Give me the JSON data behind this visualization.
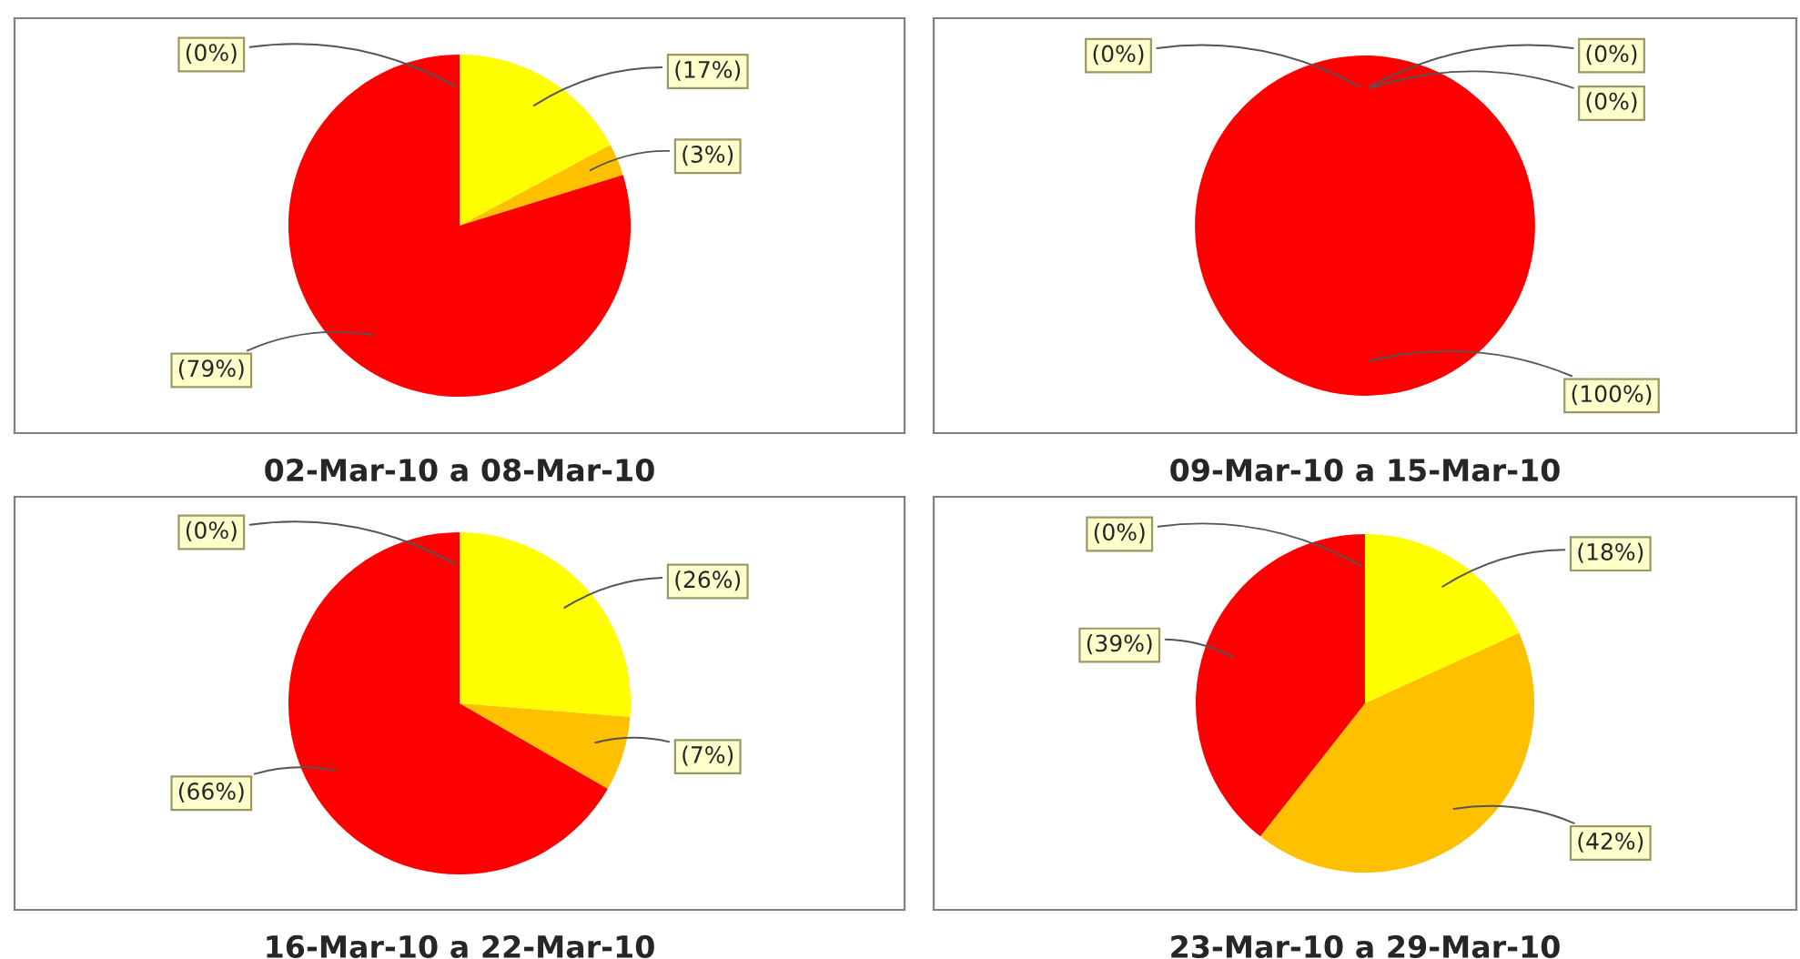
{
  "chart_data": [
    {
      "type": "pie",
      "title": "02-Mar-10 a 08-Mar-10",
      "categories": [
        null,
        null,
        null,
        null
      ],
      "values": [
        17,
        3,
        79,
        0
      ],
      "colors": [
        "#ffff00",
        "#ffc000",
        "#ff0000",
        "#00ff00"
      ],
      "value_labels": [
        "(17%)",
        "(3%)",
        "(79%)",
        "(0%)"
      ]
    },
    {
      "type": "pie",
      "title": "09-Mar-10 a 15-Mar-10",
      "categories": [
        null,
        null,
        null,
        null
      ],
      "values": [
        0,
        0,
        100,
        0
      ],
      "colors": [
        "#ffff00",
        "#ffc000",
        "#ff0000",
        "#00ff00"
      ],
      "value_labels": [
        "(0%)",
        "(0%)",
        "(100%)",
        "(0%)"
      ]
    },
    {
      "type": "pie",
      "title": "16-Mar-10 a 22-Mar-10",
      "categories": [
        null,
        null,
        null,
        null
      ],
      "values": [
        26,
        7,
        66,
        0
      ],
      "colors": [
        "#ffff00",
        "#ffc000",
        "#ff0000",
        "#00ff00"
      ],
      "value_labels": [
        "(26%)",
        "(7%)",
        "(66%)",
        "(0%)"
      ]
    },
    {
      "type": "pie",
      "title": "23-Mar-10 a 29-Mar-10",
      "categories": [
        null,
        null,
        null,
        null
      ],
      "values": [
        18,
        42,
        39,
        0
      ],
      "colors": [
        "#ffff00",
        "#ffc000",
        "#ff0000",
        "#00ff00"
      ],
      "value_labels": [
        "(18%)",
        "(42%)",
        "(39%)",
        "(0%)"
      ]
    }
  ]
}
